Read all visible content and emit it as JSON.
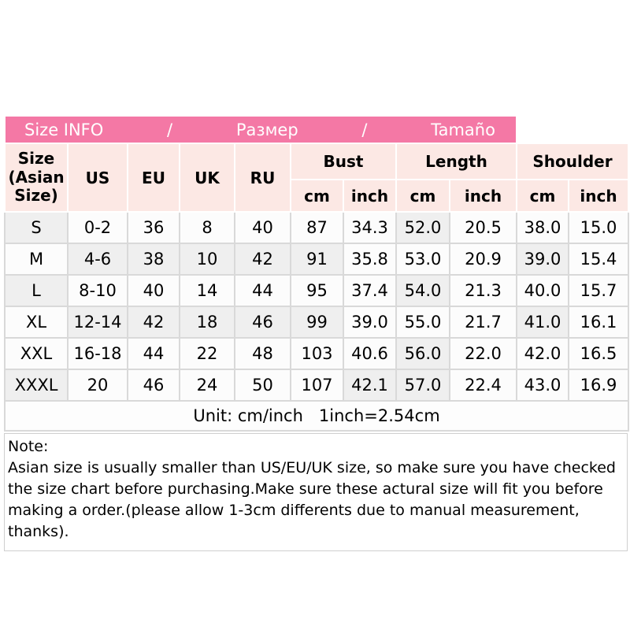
{
  "banner": {
    "title_en": "Size INFO",
    "sep1": "/",
    "title_ru": "Размер",
    "sep2": "/",
    "title_es": "Tamaño"
  },
  "table": {
    "size_col_label": "Size (Asian Size)",
    "region_cols": [
      "US",
      "EU",
      "UK",
      "RU"
    ],
    "groups": [
      "Bust",
      "Length",
      "Shoulder"
    ],
    "unit_cols": [
      "cm",
      "inch",
      "cm",
      "inch",
      "cm",
      "inch"
    ],
    "rows": [
      {
        "cells": [
          "S",
          "0-2",
          "36",
          "8",
          "40",
          "87",
          "34.3",
          "52.0",
          "20.5",
          "38.0",
          "15.0"
        ],
        "gray": [
          0,
          7
        ]
      },
      {
        "cells": [
          "M",
          "4-6",
          "38",
          "10",
          "42",
          "91",
          "35.8",
          "53.0",
          "20.9",
          "39.0",
          "15.4"
        ],
        "gray": [
          1,
          2,
          3,
          4,
          5,
          9
        ]
      },
      {
        "cells": [
          "L",
          "8-10",
          "40",
          "14",
          "44",
          "95",
          "37.4",
          "54.0",
          "21.3",
          "40.0",
          "15.7"
        ],
        "gray": [
          0,
          7
        ]
      },
      {
        "cells": [
          "XL",
          "12-14",
          "42",
          "18",
          "46",
          "99",
          "39.0",
          "55.0",
          "21.7",
          "41.0",
          "16.1"
        ],
        "gray": [
          1,
          2,
          3,
          4,
          5,
          9
        ]
      },
      {
        "cells": [
          "XXL",
          "16-18",
          "44",
          "22",
          "48",
          "103",
          "40.6",
          "56.0",
          "22.0",
          "42.0",
          "16.5"
        ],
        "gray": [
          7
        ]
      },
      {
        "cells": [
          "XXXL",
          "20",
          "46",
          "24",
          "50",
          "107",
          "42.1",
          "57.0",
          "22.4",
          "43.0",
          "16.9"
        ],
        "gray": [
          0,
          6,
          7
        ]
      }
    ],
    "unit_note": "Unit: cm/inch   1inch=2.54cm"
  },
  "note": {
    "title": "Note:",
    "body": "Asian size is usually smaller than US/EU/UK size, so make sure you have checked the size chart before purchasing.Make sure these actural size will fit you before making a order.(please allow 1-3cm differents due to manual measurement, thanks)."
  },
  "colors": {
    "banner_pink": "#f478a5",
    "header_light_pink": "#fce8e4",
    "gray_cell": "#efefef",
    "grid_border": "#d9d9d9"
  }
}
